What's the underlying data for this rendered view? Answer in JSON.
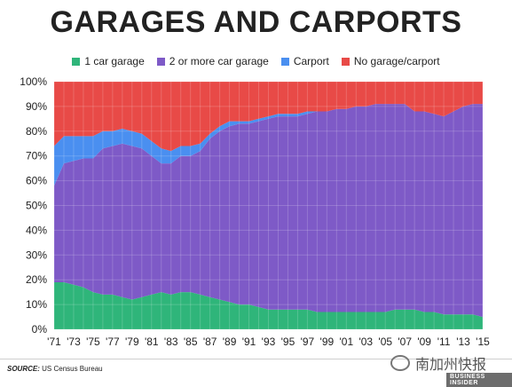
{
  "title": "GARAGES AND CARPORTS",
  "source_label": "SOURCE:",
  "source_text": "US Census Bureau",
  "watermark": "南加州快报",
  "brand": "BUSINESS INSIDER",
  "chart_data": {
    "type": "area",
    "stacked": true,
    "title": "GARAGES AND CARPORTS",
    "legend_position": "top",
    "x": [
      1971,
      1972,
      1973,
      1974,
      1975,
      1976,
      1977,
      1978,
      1979,
      1980,
      1981,
      1982,
      1983,
      1984,
      1985,
      1986,
      1987,
      1988,
      1989,
      1990,
      1991,
      1992,
      1993,
      1994,
      1995,
      1996,
      1997,
      1998,
      1999,
      2000,
      2001,
      2002,
      2003,
      2004,
      2005,
      2006,
      2007,
      2008,
      2009,
      2010,
      2011,
      2012,
      2013,
      2014,
      2015
    ],
    "x_tick_labels": [
      "'71",
      "'73",
      "'75",
      "'77",
      "'79",
      "'81",
      "'83",
      "'85",
      "'87",
      "'89",
      "'91",
      "'93",
      "'95",
      "'97",
      "'99",
      "'01",
      "'03",
      "'05",
      "'07",
      "'09",
      "'11",
      "'13",
      "'15"
    ],
    "x_tick_values": [
      1971,
      1973,
      1975,
      1977,
      1979,
      1981,
      1983,
      1985,
      1987,
      1989,
      1991,
      1993,
      1995,
      1997,
      1999,
      2001,
      2003,
      2005,
      2007,
      2009,
      2011,
      2013,
      2015
    ],
    "y_tick_labels": [
      "0%",
      "10%",
      "20%",
      "30%",
      "40%",
      "50%",
      "60%",
      "70%",
      "80%",
      "90%",
      "100%"
    ],
    "ylim": [
      0,
      100
    ],
    "series": [
      {
        "name": "1 car garage",
        "color": "#2fb57a",
        "values": [
          19,
          19,
          18,
          17,
          15,
          14,
          14,
          13,
          12,
          13,
          14,
          15,
          14,
          15,
          15,
          14,
          13,
          12,
          11,
          10,
          10,
          9,
          8,
          8,
          8,
          8,
          8,
          7,
          7,
          7,
          7,
          7,
          7,
          7,
          7,
          8,
          8,
          8,
          7,
          7,
          6,
          6,
          6,
          6,
          5
        ]
      },
      {
        "name": "2 or more car garage",
        "color": "#7e5ac7",
        "values": [
          39,
          48,
          50,
          52,
          54,
          59,
          60,
          62,
          62,
          60,
          56,
          52,
          53,
          55,
          55,
          58,
          64,
          68,
          71,
          73,
          73,
          75,
          77,
          78,
          78,
          78,
          79,
          81,
          81,
          82,
          82,
          83,
          83,
          84,
          84,
          83,
          83,
          80,
          81,
          80,
          80,
          82,
          84,
          85,
          86
        ]
      },
      {
        "name": "Carport",
        "color": "#4a8ff0",
        "values": [
          16,
          11,
          10,
          9,
          9,
          7,
          6,
          6,
          6,
          6,
          6,
          6,
          5,
          4,
          4,
          3,
          2,
          2,
          2,
          1,
          1,
          1,
          1,
          1,
          1,
          1,
          1,
          0,
          0,
          0,
          0,
          0,
          0,
          0,
          0,
          0,
          0,
          0,
          0,
          0,
          0,
          0,
          0,
          0,
          0
        ]
      },
      {
        "name": "No garage/carport",
        "color": "#e84a47",
        "values": [
          26,
          22,
          22,
          22,
          22,
          20,
          20,
          19,
          20,
          21,
          24,
          27,
          28,
          26,
          26,
          25,
          21,
          18,
          16,
          16,
          16,
          15,
          14,
          13,
          13,
          13,
          12,
          12,
          12,
          11,
          11,
          10,
          10,
          9,
          9,
          9,
          9,
          12,
          12,
          13,
          14,
          12,
          10,
          9,
          9
        ]
      }
    ]
  }
}
